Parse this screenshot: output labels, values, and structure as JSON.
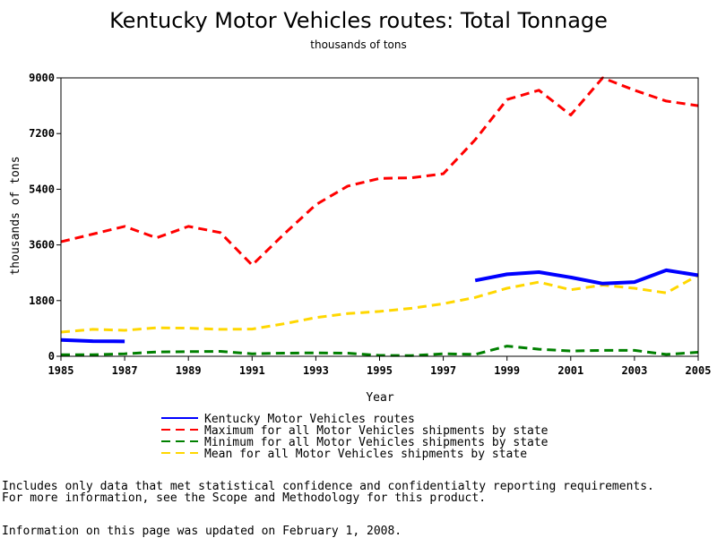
{
  "chart_data": {
    "type": "line",
    "title": "Kentucky Motor Vehicles routes: Total Tonnage",
    "subtitle": "thousands of tons",
    "xlabel": "Year",
    "ylabel": "thousands of tons",
    "xlim": [
      1985,
      2005
    ],
    "ylim": [
      0,
      9000
    ],
    "xticks": [
      "1985",
      "1987",
      "1989",
      "1991",
      "1993",
      "1995",
      "1997",
      "1999",
      "2001",
      "2003",
      "2005"
    ],
    "yticks": [
      "0",
      "1800",
      "3600",
      "5400",
      "7200",
      "9000"
    ],
    "grid": false,
    "legend_position": "bottom",
    "series": [
      {
        "name": "Kentucky Motor Vehicles routes",
        "color": "#0000ff",
        "style": "solid",
        "segments": [
          {
            "x": [
              1985,
              1986,
              1987
            ],
            "y": [
              530,
              490,
              480
            ]
          },
          {
            "x": [
              1998,
              1999,
              2000,
              2001,
              2002,
              2003,
              2004,
              2005
            ],
            "y": [
              2450,
              2650,
              2720,
              2550,
              2350,
              2400,
              2780,
              2620
            ]
          }
        ]
      },
      {
        "name": "Maximum for all Motor Vehicles shipments by state",
        "color": "#ff0000",
        "style": "dashed",
        "segments": [
          {
            "x": [
              1985,
              1986,
              1987,
              1988,
              1989,
              1990,
              1991,
              1992,
              1993,
              1994,
              1995,
              1996,
              1997,
              1998,
              1999,
              2000,
              2001,
              2002,
              2003,
              2004,
              2005
            ],
            "y": [
              3700,
              3950,
              4200,
              3830,
              4200,
              4000,
              2950,
              3950,
              4900,
              5500,
              5750,
              5770,
              5900,
              7000,
              8300,
              8600,
              7800,
              9000,
              8600,
              8250,
              8100
            ]
          }
        ]
      },
      {
        "name": "Minimum for all Motor Vehicles shipments by state",
        "color": "#008000",
        "style": "dashed",
        "segments": [
          {
            "x": [
              1985,
              1986,
              1987,
              1988,
              1989,
              1990,
              1991,
              1992,
              1993,
              1994,
              1995,
              1996,
              1997,
              1998,
              1999,
              2000,
              2001,
              2002,
              2003,
              2004,
              2005
            ],
            "y": [
              50,
              50,
              80,
              140,
              150,
              160,
              80,
              100,
              110,
              100,
              30,
              20,
              80,
              60,
              330,
              230,
              170,
              190,
              190,
              60,
              130
            ]
          }
        ]
      },
      {
        "name": "Mean for all Motor Vehicles shipments by state",
        "color": "#ffd700",
        "style": "dashed",
        "segments": [
          {
            "x": [
              1985,
              1986,
              1987,
              1988,
              1989,
              1990,
              1991,
              1992,
              1993,
              1994,
              1995,
              1996,
              1997,
              1998,
              1999,
              2000,
              2001,
              2002,
              2003,
              2004,
              2005
            ],
            "y": [
              780,
              870,
              840,
              920,
              910,
              870,
              880,
              1050,
              1250,
              1380,
              1450,
              1550,
              1700,
              1900,
              2200,
              2400,
              2150,
              2300,
              2200,
              2050,
              2620
            ]
          }
        ]
      }
    ]
  },
  "footnotes": {
    "line1": "Includes only data that met statistical confidence and confidentialty reporting requirements.",
    "line2": "For more information, see the Scope and Methodology for this product.",
    "updated": "Information on this page was updated on February 1, 2008."
  }
}
